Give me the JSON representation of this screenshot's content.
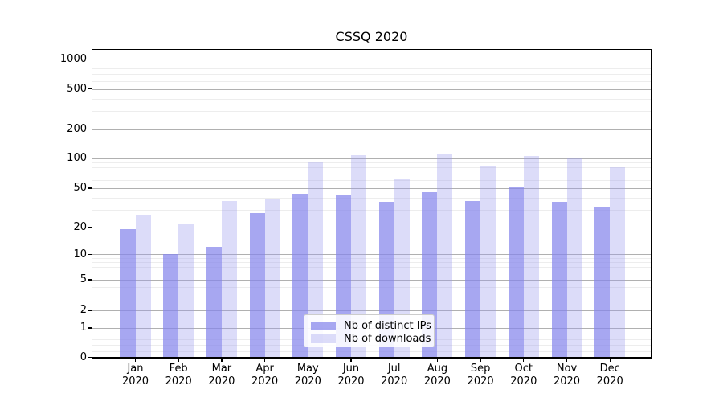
{
  "chart_data": {
    "type": "bar",
    "title": "CSSQ 2020",
    "x_months": [
      "Jan",
      "Feb",
      "Mar",
      "Apr",
      "May",
      "Jun",
      "Jul",
      "Aug",
      "Sep",
      "Oct",
      "Nov",
      "Dec"
    ],
    "x_year": "2020",
    "series": [
      {
        "name": "Nb of distinct IPs",
        "color": "#8585ec",
        "alpha": 0.72,
        "values": [
          19,
          10,
          12,
          28,
          44,
          43,
          36,
          45,
          37,
          52,
          36,
          32
        ]
      },
      {
        "name": "Nb of downloads",
        "color": "#9b9bee",
        "alpha": 0.35,
        "values": [
          27,
          22,
          37,
          39,
          91,
          108,
          61,
          110,
          83,
          104,
          100,
          81
        ]
      }
    ],
    "y_scale": "symlog",
    "ylim": [
      0,
      1250
    ],
    "y_major_ticks": [
      0,
      1,
      2,
      5,
      10,
      20,
      50,
      100,
      200,
      500,
      1000
    ],
    "y_minor_ticks": [
      0.2,
      0.4,
      0.6,
      0.8,
      3,
      4,
      6,
      7,
      8,
      9,
      30,
      40,
      60,
      70,
      80,
      90,
      300,
      400,
      600,
      700,
      800,
      900
    ],
    "grid": "on",
    "legend_position": "lower center",
    "colors": {
      "major_gridline": "#b0b0b0",
      "minor_gridline": "#ededed",
      "spine": "#000000",
      "background": "#ffffff"
    }
  }
}
